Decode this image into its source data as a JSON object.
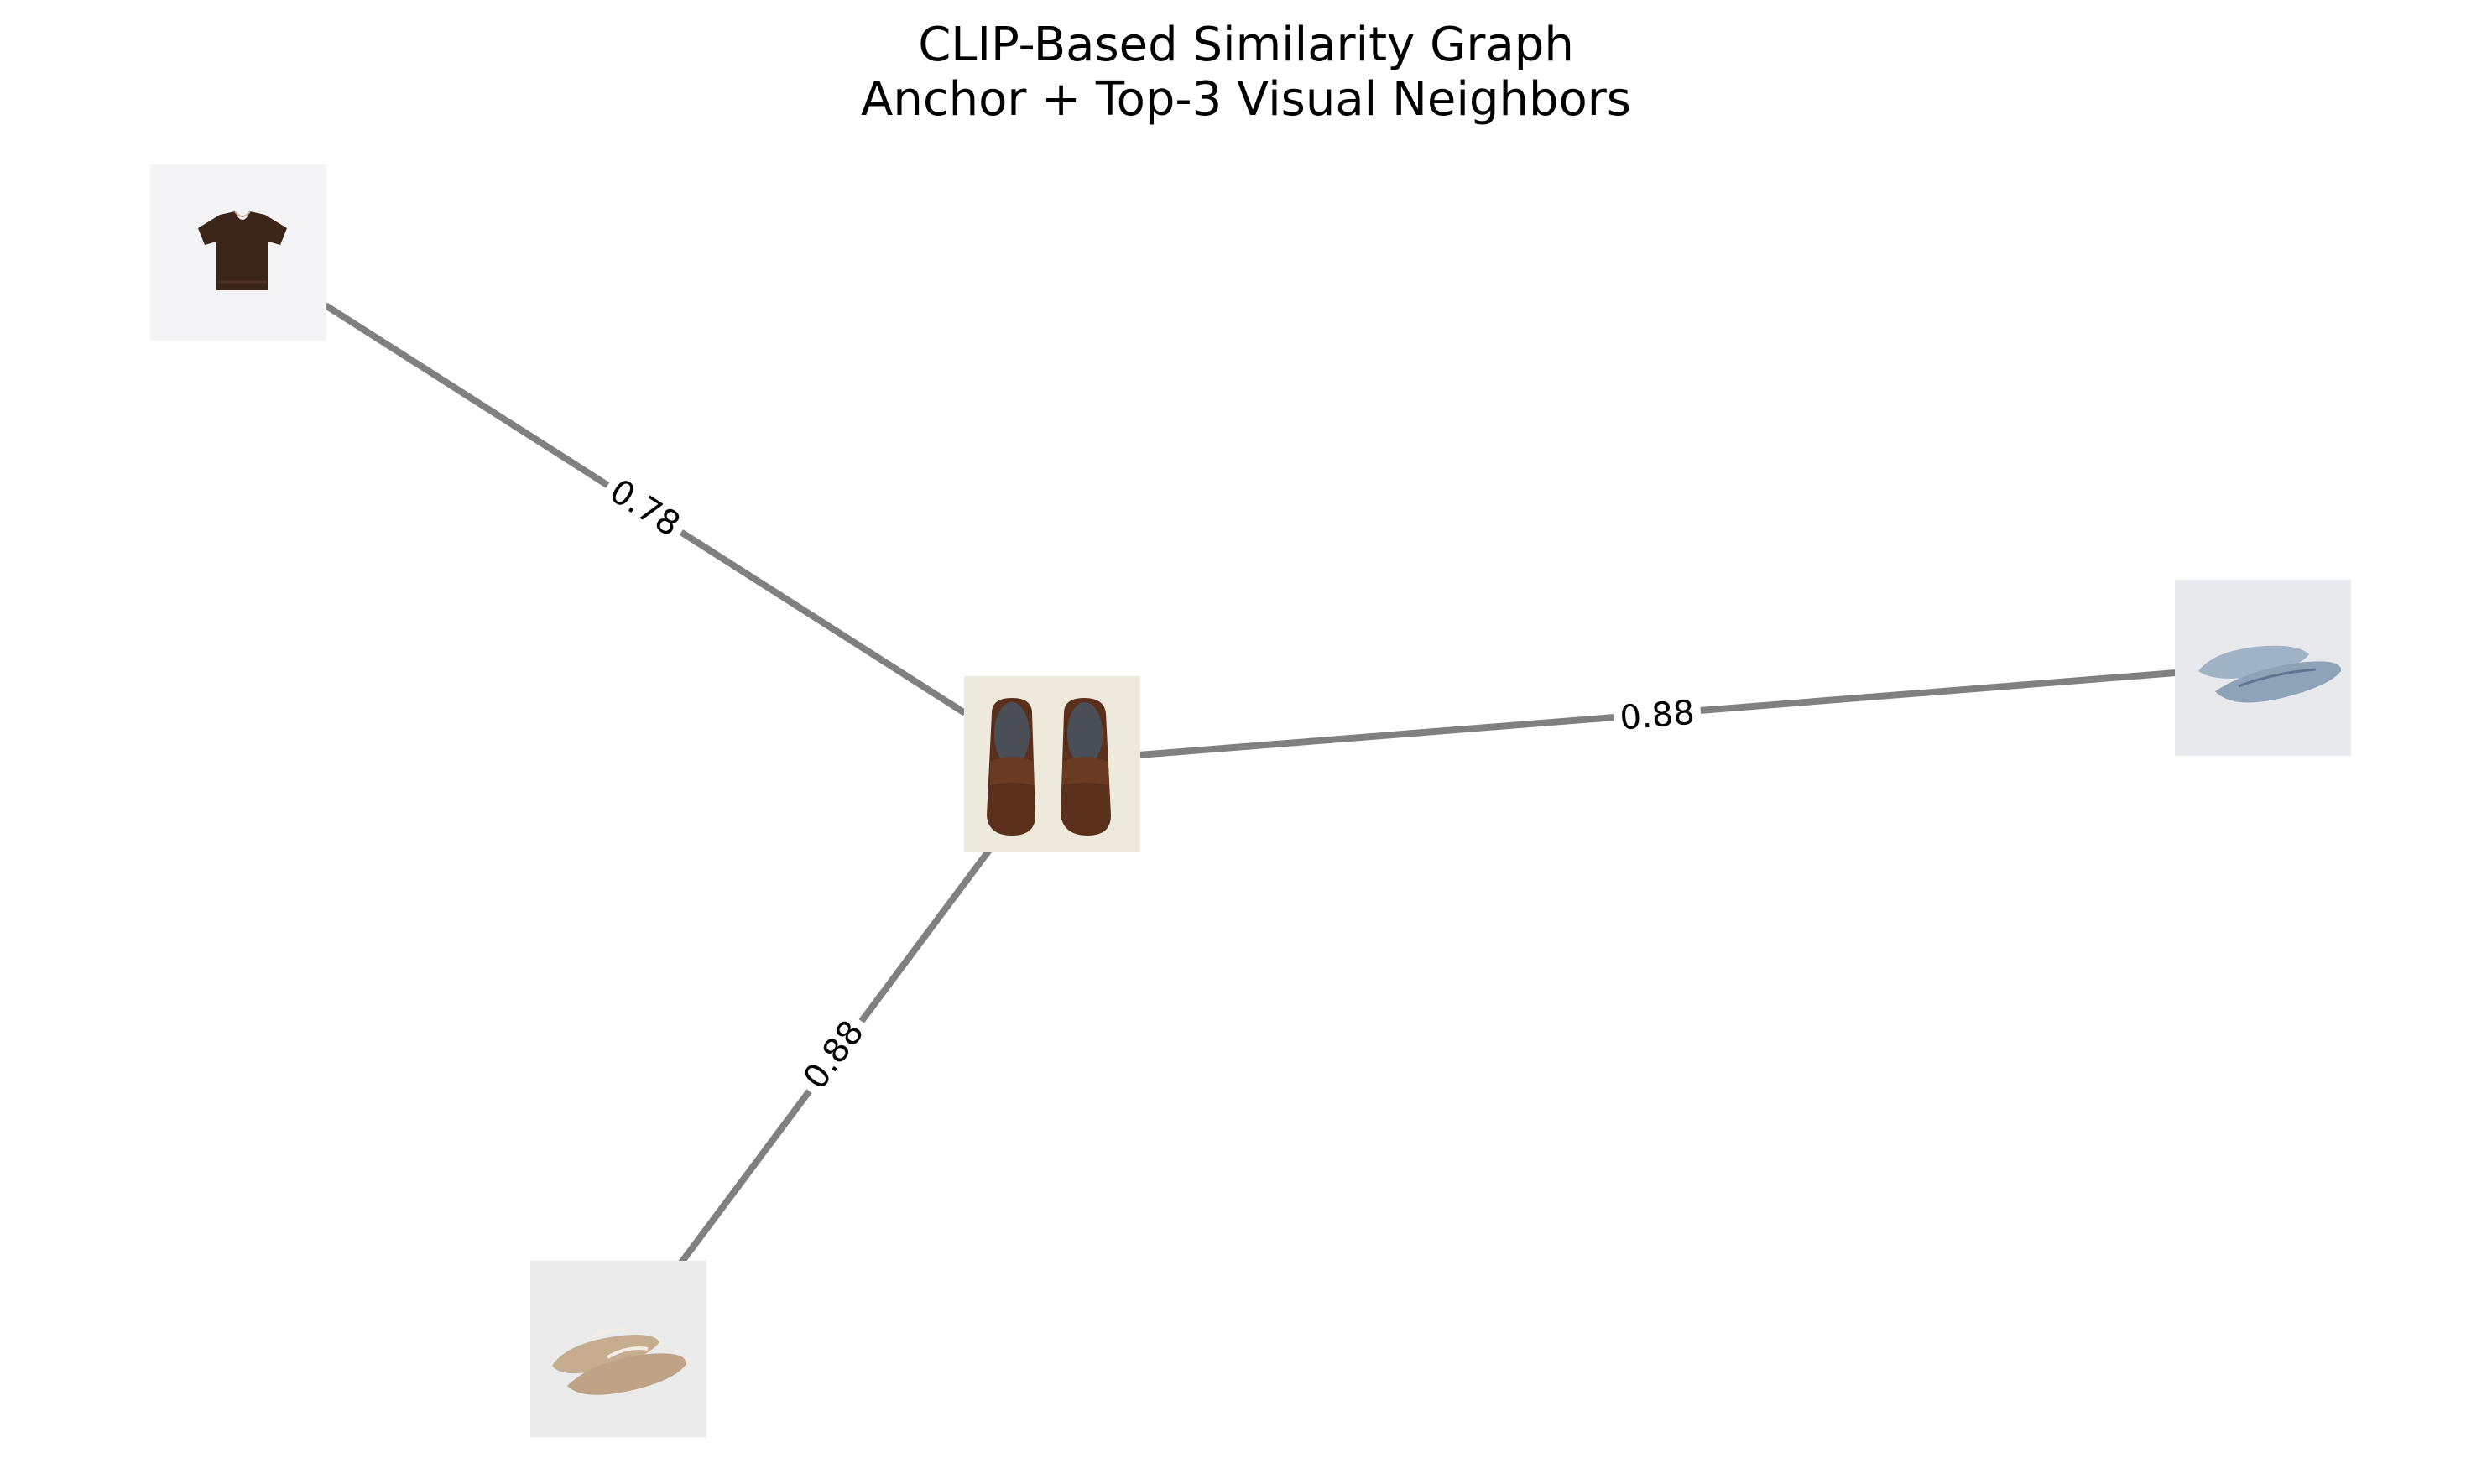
{
  "title": {
    "line1": "CLIP-Based Similarity Graph",
    "line2": "Anchor + Top-3 Visual Neighbors"
  },
  "colors": {
    "edge": "#808080",
    "background": "#ffffff",
    "text": "#000000"
  },
  "nodes": [
    {
      "id": "anchor",
      "role": "anchor",
      "item": "brown suede loafers",
      "icon": "loafers-thumbnail"
    },
    {
      "id": "n1",
      "role": "neighbor",
      "item": "brown knit t-shirt",
      "icon": "tshirt-thumbnail"
    },
    {
      "id": "n2",
      "role": "neighbor",
      "item": "blue mesh ballet flats",
      "icon": "mesh-flats-thumbnail"
    },
    {
      "id": "n3",
      "role": "neighbor",
      "item": "beige mary jane flats",
      "icon": "mary-jane-flats-thumbnail"
    }
  ],
  "edges": [
    {
      "source": "anchor",
      "target": "n1",
      "label": "0.78",
      "similarity": 0.78
    },
    {
      "source": "anchor",
      "target": "n2",
      "label": "0.88",
      "similarity": 0.88
    },
    {
      "source": "anchor",
      "target": "n3",
      "label": "0.88",
      "similarity": 0.88
    }
  ]
}
